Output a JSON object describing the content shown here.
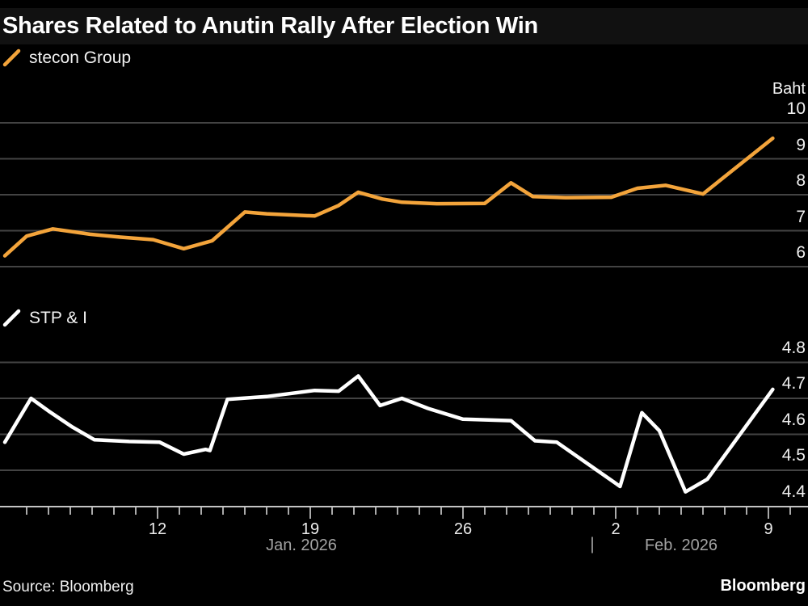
{
  "header": {
    "title": "Shares Related to Anutin Rally After Election Win"
  },
  "charts": {
    "top": {
      "legend": "stecon Group",
      "unit": "Baht"
    },
    "bottom": {
      "legend": "STP & I"
    }
  },
  "x_axis": {
    "month_left": "Jan. 2026",
    "separator": "|",
    "month_right": "Feb. 2026",
    "labeled_ticks": [
      {
        "day": 7,
        "label": "12"
      },
      {
        "day": 14,
        "label": "19"
      },
      {
        "day": 21,
        "label": "26"
      },
      {
        "day": 28,
        "label": "2"
      },
      {
        "day": 35,
        "label": "9"
      }
    ],
    "minor_tick_days_start": 1,
    "minor_tick_days_end": 36
  },
  "footer": {
    "source": "Source: Bloomberg",
    "logo": "Bloomberg"
  },
  "colors": {
    "background": "#000000",
    "title_band": "#111111",
    "orange_line": "#f3a43b",
    "white_line": "#ffffff",
    "gridline": "#434343",
    "axis_line": "#c4c4c4",
    "tick": "#d6d6d6"
  },
  "chart_data": [
    {
      "type": "line",
      "name": "stecon Group",
      "unit": "Baht",
      "color": "#f3a43b",
      "yticks": [
        10,
        9,
        8,
        7,
        6
      ],
      "ylim": [
        6,
        10
      ],
      "grid": "horizontal",
      "legend_position": "top-left",
      "x_note": "x = calendar days since Mon Jan 5 2026; labeled ticks Jan 12, 19, 26, Feb 2, 9",
      "points": [
        [
          0,
          6.3
        ],
        [
          1,
          6.85
        ],
        [
          2.2,
          7.05
        ],
        [
          3.9,
          6.9
        ],
        [
          5.3,
          6.82
        ],
        [
          6.8,
          6.75
        ],
        [
          8.2,
          6.5
        ],
        [
          9.5,
          6.72
        ],
        [
          11,
          7.52
        ],
        [
          12,
          7.47
        ],
        [
          14.2,
          7.41
        ],
        [
          15.3,
          7.7
        ],
        [
          16.2,
          8.07
        ],
        [
          17.3,
          7.88
        ],
        [
          18.2,
          7.79
        ],
        [
          19.8,
          7.75
        ],
        [
          22,
          7.76
        ],
        [
          23.2,
          8.33
        ],
        [
          24.2,
          7.95
        ],
        [
          25.7,
          7.92
        ],
        [
          27.8,
          7.93
        ],
        [
          29,
          8.18
        ],
        [
          30.3,
          8.26
        ],
        [
          32,
          8.02
        ],
        [
          35.2,
          9.57
        ]
      ]
    },
    {
      "type": "line",
      "name": "STP & I",
      "unit": "Baht",
      "color": "#ffffff",
      "yticks": [
        4.8,
        4.7,
        4.6,
        4.5,
        4.4
      ],
      "ylim": [
        4.4,
        4.8
      ],
      "grid": "horizontal",
      "legend_position": "top-left",
      "x_note": "x = calendar days since Mon Jan 5 2026; labeled ticks Jan 12, 19, 26, Feb 2, 9",
      "points": [
        [
          0,
          4.578
        ],
        [
          1.2,
          4.7
        ],
        [
          2,
          4.665
        ],
        [
          3.1,
          4.62
        ],
        [
          4.1,
          4.585
        ],
        [
          5.7,
          4.58
        ],
        [
          7.1,
          4.578
        ],
        [
          8.2,
          4.545
        ],
        [
          9.2,
          4.558
        ],
        [
          9.4,
          4.555
        ],
        [
          10.2,
          4.697
        ],
        [
          12,
          4.705
        ],
        [
          14.2,
          4.722
        ],
        [
          15.3,
          4.72
        ],
        [
          16.2,
          4.762
        ],
        [
          17.2,
          4.68
        ],
        [
          18.2,
          4.7
        ],
        [
          19.4,
          4.672
        ],
        [
          21,
          4.642
        ],
        [
          23.2,
          4.638
        ],
        [
          24.3,
          4.582
        ],
        [
          25.3,
          4.578
        ],
        [
          28.2,
          4.455
        ],
        [
          29.2,
          4.66
        ],
        [
          30,
          4.61
        ],
        [
          31.2,
          4.44
        ],
        [
          32.2,
          4.475
        ],
        [
          35.2,
          4.725
        ]
      ]
    }
  ]
}
